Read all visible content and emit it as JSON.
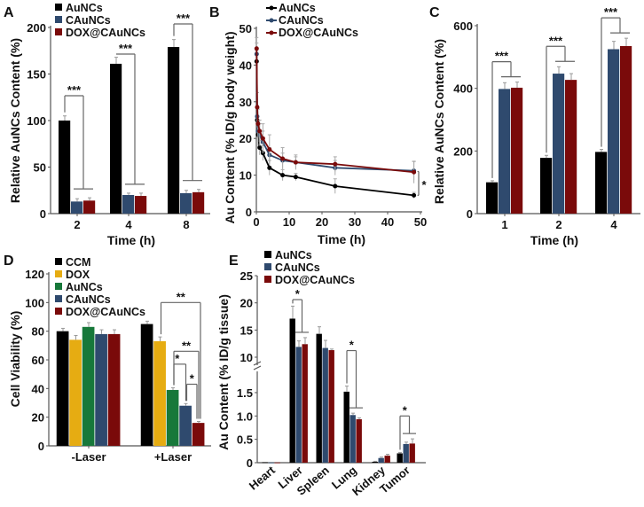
{
  "colors": {
    "AuNCs": "#000000",
    "CAuNCs": "#2f4a6e",
    "DOX@CAuNCs": "#7a0a0a",
    "CCM": "#000000",
    "DOX": "#e6ac12",
    "AuNCsD": "#17783a",
    "axis": "#555555"
  },
  "chart_data": [
    {
      "panel": "A",
      "type": "bar",
      "xlabel": "Time (h)",
      "ylabel": "Relative AuNCs Content (%)",
      "ylim": [
        0,
        200
      ],
      "yticks": [
        0,
        50,
        100,
        150,
        200
      ],
      "categories": [
        "2",
        "4",
        "8"
      ],
      "legend": [
        "AuNCs",
        "CAuNCs",
        "DOX@CAuNCs"
      ],
      "legend_placement": "top-left",
      "series": [
        {
          "name": "AuNCs",
          "values": [
            100,
            161,
            179
          ],
          "errors": [
            5,
            7,
            8
          ]
        },
        {
          "name": "CAuNCs",
          "values": [
            13,
            20,
            22
          ],
          "errors": [
            3,
            2,
            3
          ]
        },
        {
          "name": "DOX@CAuNCs",
          "values": [
            14,
            19,
            23
          ],
          "errors": [
            3,
            3,
            3
          ]
        }
      ],
      "annotations": [
        {
          "label": "***",
          "group": 0
        },
        {
          "label": "***",
          "group": 1
        },
        {
          "label": "***",
          "group": 2
        }
      ]
    },
    {
      "panel": "B",
      "type": "line",
      "xlabel": "Time (h)",
      "ylabel": "Au Content (% ID/g body weight)",
      "xlim": [
        0,
        50
      ],
      "ylim": [
        0,
        50
      ],
      "xticks": [
        0,
        10,
        20,
        30,
        40,
        50
      ],
      "yticks": [
        0,
        10,
        20,
        30,
        40,
        50
      ],
      "legend": [
        "AuNCs",
        "CAuNCs",
        "DOX@CAuNCs"
      ],
      "legend_placement": "top",
      "x": [
        0.083,
        0.25,
        0.5,
        1,
        2,
        4,
        8,
        12,
        24,
        48
      ],
      "series": [
        {
          "name": "AuNCs",
          "values": [
            41,
            25,
            21,
            17.5,
            16,
            12,
            10,
            9.5,
            7,
            4.5
          ],
          "errors": [
            3,
            3,
            3,
            2,
            2,
            2,
            1.5,
            1,
            2,
            0.8
          ]
        },
        {
          "name": "CAuNCs",
          "values": [
            43,
            26,
            22,
            21,
            19,
            15.5,
            14,
            13.5,
            12,
            11.2
          ],
          "errors": [
            3,
            3,
            3,
            3,
            3,
            2,
            2,
            1.5,
            2,
            2.5
          ]
        },
        {
          "name": "DOX@CAuNCs",
          "values": [
            44.5,
            28.5,
            24,
            22,
            20,
            17,
            14.5,
            13.5,
            13,
            10.8
          ],
          "errors": [
            3,
            4,
            4,
            3,
            4,
            4,
            3,
            2,
            2,
            3
          ]
        }
      ],
      "annotations": [
        {
          "label": "*",
          "x": 48,
          "from": 11,
          "to": 4.5
        }
      ]
    },
    {
      "panel": "C",
      "type": "bar",
      "xlabel": "Time (h)",
      "ylabel": "Relative AuNCs Content (%)",
      "ylim": [
        0,
        600
      ],
      "yticks": [
        0,
        200,
        400,
        600
      ],
      "categories": [
        "1",
        "2",
        "4"
      ],
      "series": [
        {
          "name": "AuNCs",
          "values": [
            100,
            178,
            197
          ],
          "errors": [
            5,
            8,
            8
          ]
        },
        {
          "name": "CAuNCs",
          "values": [
            398,
            447,
            525
          ],
          "errors": [
            20,
            22,
            25
          ]
        },
        {
          "name": "DOX@CAuNCs",
          "values": [
            402,
            427,
            535
          ],
          "errors": [
            18,
            20,
            25
          ]
        }
      ],
      "annotations": [
        {
          "label": "***",
          "group": 0
        },
        {
          "label": "***",
          "group": 1
        },
        {
          "label": "***",
          "group": 2
        }
      ]
    },
    {
      "panel": "D",
      "type": "bar",
      "xlabel": "",
      "ylabel": "Cell Viability (%)",
      "ylim": [
        0,
        120
      ],
      "yticks": [
        0,
        20,
        40,
        60,
        80,
        100,
        120
      ],
      "categories": [
        "-Laser",
        "+Laser"
      ],
      "legend": [
        "CCM",
        "DOX",
        "AuNCs",
        "CAuNCs",
        "DOX@CAuNCs"
      ],
      "legend_placement": "top-left",
      "series": [
        {
          "name": "CCM",
          "values": [
            80,
            85
          ],
          "errors": [
            2,
            2
          ]
        },
        {
          "name": "DOX",
          "values": [
            74,
            73
          ],
          "errors": [
            3,
            3
          ]
        },
        {
          "name": "AuNCs",
          "values": [
            83,
            39
          ],
          "errors": [
            3,
            1.5
          ]
        },
        {
          "name": "CAuNCs",
          "values": [
            78,
            28
          ],
          "errors": [
            3,
            1.5
          ]
        },
        {
          "name": "DOX@CAuNCs",
          "values": [
            78,
            16
          ],
          "errors": [
            3,
            1
          ]
        }
      ],
      "annotations": [
        {
          "label": "**",
          "group": 1,
          "from": 1,
          "to": 4,
          "at": 100
        },
        {
          "label": "**",
          "group": 1,
          "from": 2,
          "to": 4,
          "at": 66
        },
        {
          "label": "*",
          "group": 1,
          "from": 2,
          "to": 3,
          "at": 57
        },
        {
          "label": "*",
          "group": 1,
          "from": 3,
          "to": 4,
          "at": 43
        }
      ]
    },
    {
      "panel": "E",
      "type": "bar",
      "xlabel": "",
      "ylabel": "Au Content (% ID/g tissue)",
      "ylim_lower": [
        0,
        2
      ],
      "ylim_upper": [
        9,
        25
      ],
      "axis_break": true,
      "yticks_lower": [
        "0",
        "0.5",
        "1.0",
        "1.5"
      ],
      "yticks_upper": [
        "10",
        "15",
        "20",
        "25"
      ],
      "categories": [
        "Heart",
        "Liver",
        "Spleen",
        "Lung",
        "Kidney",
        "Tumor"
      ],
      "legend": [
        "AuNCs",
        "CAuNCs",
        "DOX@CAuNCs"
      ],
      "legend_placement": "top",
      "series": [
        {
          "name": "AuNCs",
          "values": [
            0.01,
            17.1,
            14.3,
            1.52,
            0.02,
            0.2
          ],
          "errors": [
            0,
            2.3,
            1.3,
            0.12,
            0.01,
            0.02
          ]
        },
        {
          "name": "CAuNCs",
          "values": [
            0.005,
            11.9,
            11.7,
            1.02,
            0.1,
            0.4
          ],
          "errors": [
            0,
            1.1,
            1.4,
            0.04,
            0.02,
            0.04
          ]
        },
        {
          "name": "DOX@CAuNCs",
          "values": [
            0.005,
            12.4,
            11.3,
            0.93,
            0.15,
            0.41
          ],
          "errors": [
            0,
            1.2,
            0.2,
            0.03,
            0.03,
            0.1
          ]
        }
      ],
      "annotations": [
        {
          "label": "*",
          "category": 1,
          "at": 20.6,
          "scale": "upper"
        },
        {
          "label": "*",
          "category": 3,
          "at": 2.4,
          "scale": "lower"
        },
        {
          "label": "*",
          "category": 5,
          "at": 1.0,
          "scale": "lower"
        }
      ]
    }
  ]
}
